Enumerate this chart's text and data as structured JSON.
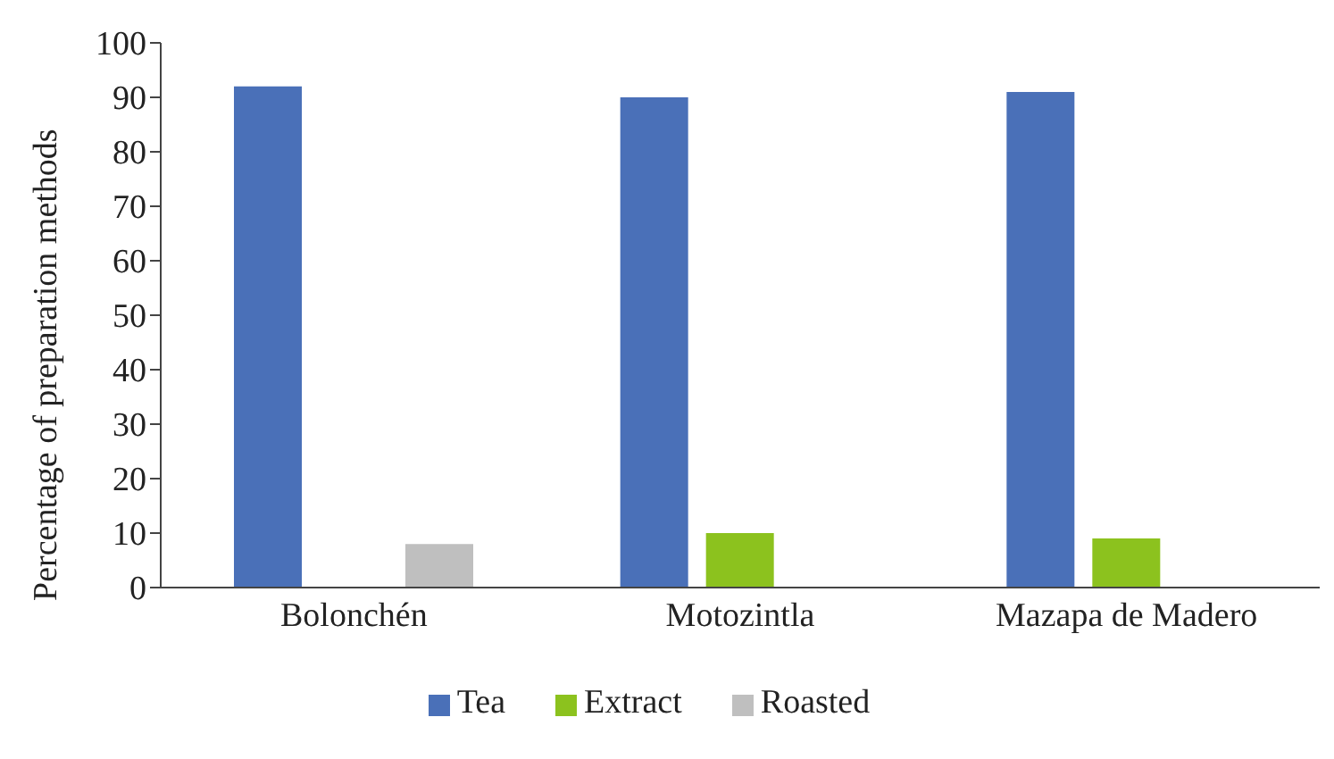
{
  "chart_data": {
    "type": "bar",
    "ylabel": "Percentage of preparation methods",
    "categories": [
      "Bolonchén",
      "Motozintla",
      "Mazapa de Madero"
    ],
    "series": [
      {
        "name": "Tea",
        "color": "#4a70b8",
        "values": [
          92,
          90,
          91
        ]
      },
      {
        "name": "Extract",
        "color": "#8cc21e",
        "values": [
          null,
          10,
          9
        ]
      },
      {
        "name": "Roasted",
        "color": "#bfbfbf",
        "values": [
          8,
          null,
          null
        ]
      }
    ],
    "ylim": [
      0,
      100
    ],
    "yticks": [
      0,
      10,
      20,
      30,
      40,
      50,
      60,
      70,
      80,
      90,
      100
    ],
    "grid": false,
    "legend": "bottom"
  }
}
